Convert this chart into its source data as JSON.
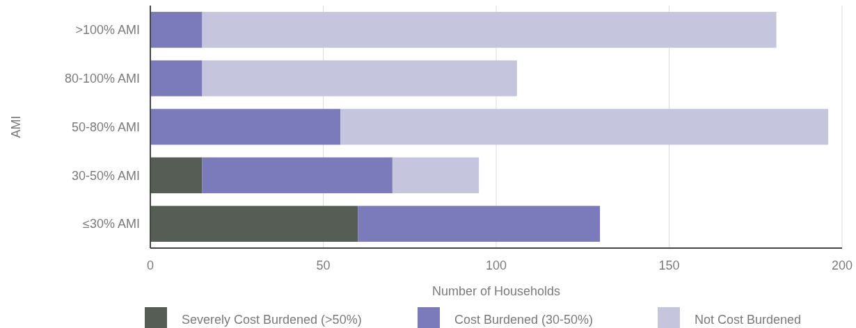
{
  "chart_data": {
    "type": "bar",
    "orientation": "horizontal",
    "stacked": true,
    "xlabel": "Number of Households",
    "ylabel": "AMI",
    "categories": [
      ">100% AMI",
      "80-100% AMI",
      "50-80% AMI",
      "30-50% AMI",
      "≤30% AMI"
    ],
    "series": [
      {
        "name": "Severely Cost Burdened (>50%)",
        "color": "#555d55",
        "values": [
          0,
          0,
          0,
          15,
          60
        ]
      },
      {
        "name": "Cost Burdened (30-50%)",
        "color": "#7b7bbb",
        "values": [
          15,
          15,
          55,
          55,
          70
        ]
      },
      {
        "name": "Not Cost Burdened",
        "color": "#c5c5de",
        "values": [
          166,
          91,
          141,
          25,
          0
        ]
      }
    ],
    "xlim": [
      0,
      200
    ],
    "xticks": [
      0,
      50,
      100,
      150,
      200
    ],
    "grid": "x",
    "legend": "bottom"
  }
}
